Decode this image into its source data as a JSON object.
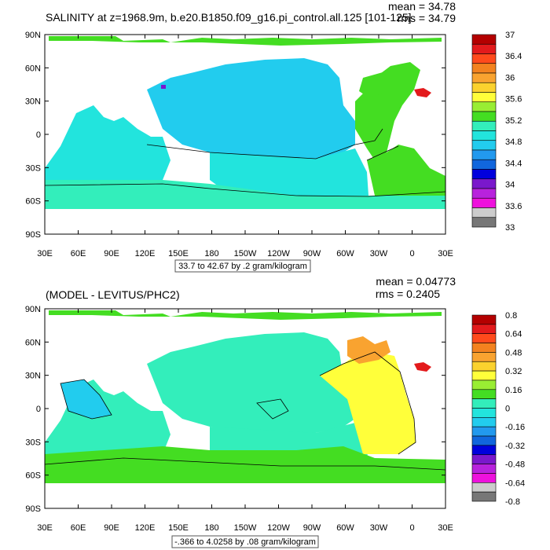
{
  "panels": [
    {
      "title": "SALINITY at z=1968.9m, b.e20.B1850.f09_g16.pi_control.all.125 [101-125]",
      "mean_text": "mean = 34.78",
      "rms_text": "rms = 34.79",
      "info_text": "33.7 to 42.67 by .2 gram/kilogram",
      "colorbar": {
        "labels": [
          "37",
          "36.4",
          "36",
          "35.6",
          "35.2",
          "34.8",
          "34.4",
          "34",
          "33.6",
          "33"
        ],
        "colors": [
          "#b40000",
          "#e31a1c",
          "#ff4a1c",
          "#f3821f",
          "#f9a330",
          "#fbd22e",
          "#ffff3a",
          "#99ee33",
          "#44dd22",
          "#33eebb",
          "#22e4dd",
          "#22ccee",
          "#2299ee",
          "#1166dd",
          "#0000dd",
          "#7a18cc",
          "#b822dd",
          "#ee11dd",
          "#cccccc",
          "#777777"
        ]
      },
      "field_colors": {
        "ocean": "#22e4dd",
        "pacific": "#22ccee",
        "atlantic": "#44dd22",
        "northatlantic": "#44dd22",
        "arctic": "#44dd22",
        "med": "#e31a1c",
        "southern": "#33eebb",
        "spot": "#7a18cc"
      }
    },
    {
      "title": "(MODEL - LEVITUS/PHC2)",
      "mean_text": "mean = 0.04773",
      "rms_text": "rms = 0.2405",
      "info_text": "-.366 to 4.0258 by .08 gram/kilogram",
      "colorbar": {
        "labels": [
          "0.8",
          "0.64",
          "0.48",
          "0.32",
          "0.16",
          "0",
          "-0.16",
          "-0.32",
          "-0.48",
          "-0.64",
          "-0.8"
        ],
        "colors": [
          "#b40000",
          "#e31a1c",
          "#ff4a1c",
          "#f3821f",
          "#f9a330",
          "#fbd22e",
          "#ffff3a",
          "#99ee33",
          "#44dd22",
          "#33eebb",
          "#22e4dd",
          "#22ccee",
          "#2299ee",
          "#1166dd",
          "#0000dd",
          "#7a18cc",
          "#b822dd",
          "#ee11dd",
          "#cccccc",
          "#777777"
        ]
      },
      "field_colors": {
        "ocean": "#33eebb",
        "pacific": "#33eebb",
        "atlantic": "#ffff3a",
        "northatlantic": "#f9a330",
        "arctic": "#44dd22",
        "med": "#e31a1c",
        "southern": "#44dd22",
        "spot": "#22ccee"
      }
    }
  ],
  "axes": {
    "lat_labels": [
      "90N",
      "60N",
      "30N",
      "0",
      "30S",
      "60S",
      "90S"
    ],
    "lon_labels": [
      "30E",
      "60E",
      "90E",
      "120E",
      "150E",
      "180",
      "150W",
      "120W",
      "90W",
      "60W",
      "30W",
      "0",
      "30E"
    ]
  }
}
